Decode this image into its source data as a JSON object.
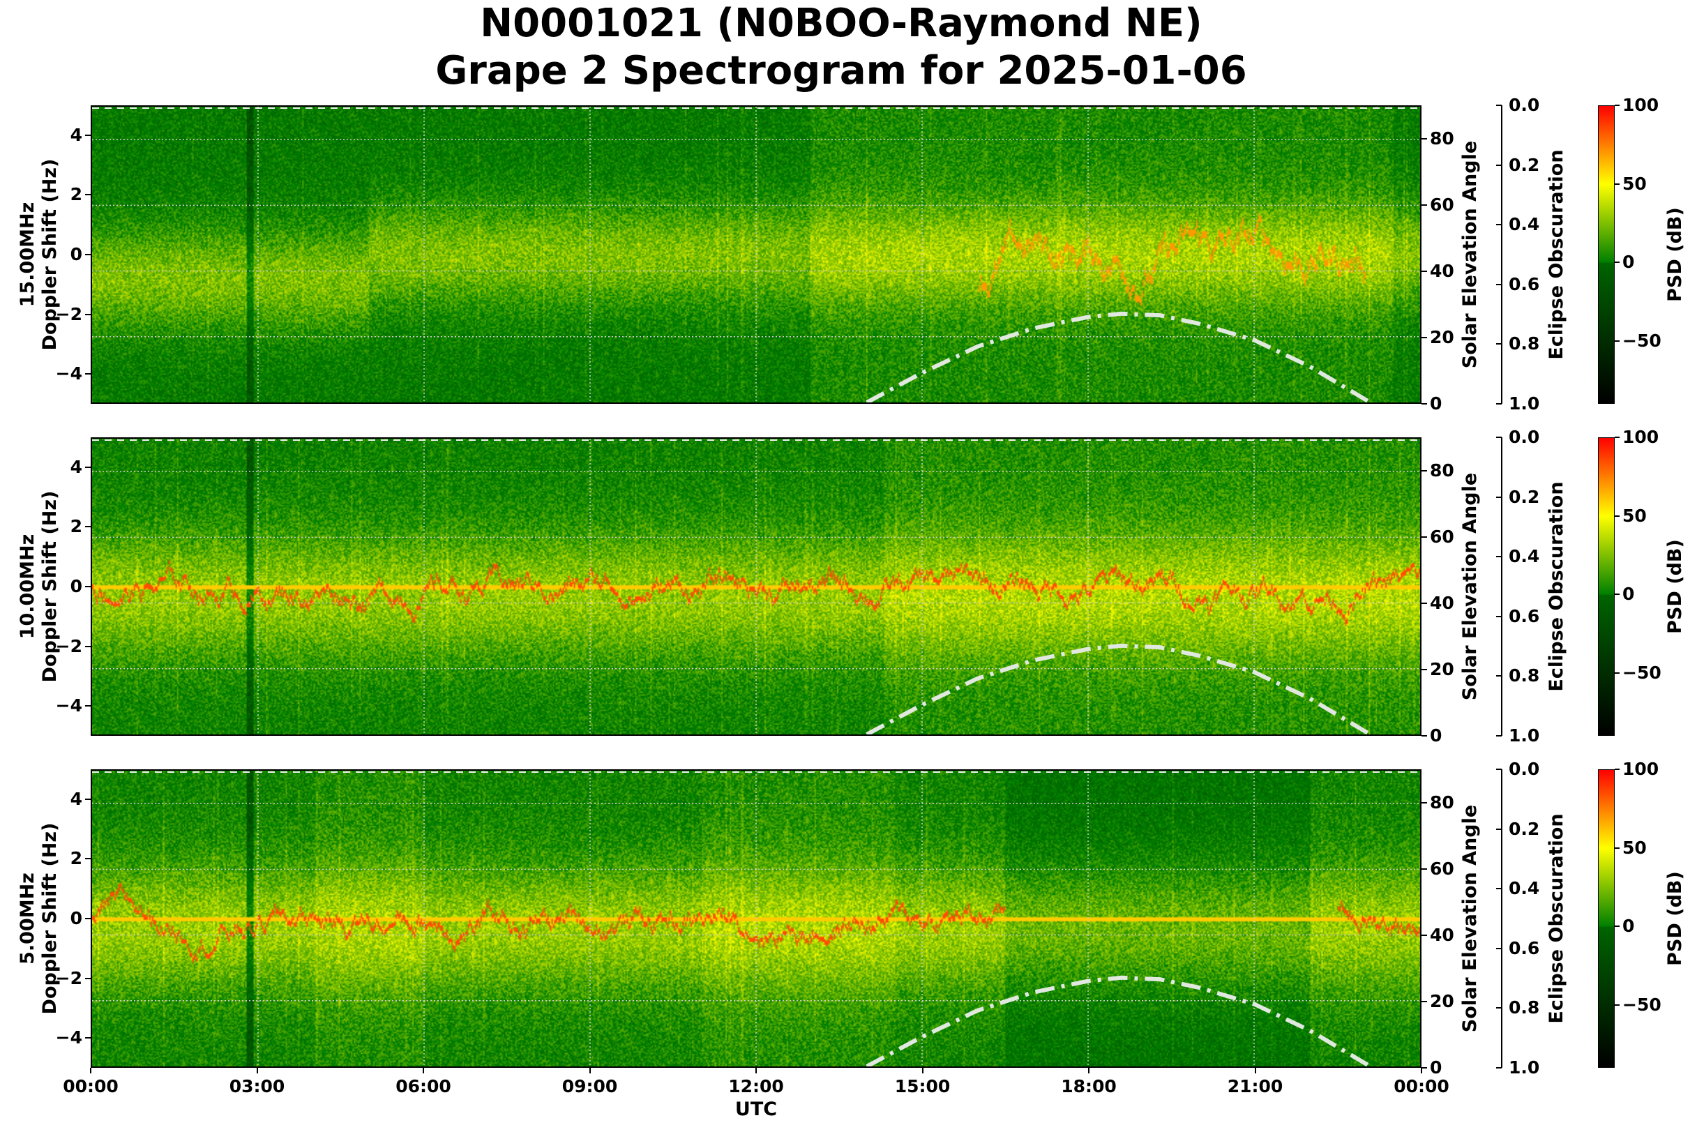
{
  "title_line1": "N0001021 (N0BOO-Raymond NE)",
  "title_line2": "Grape 2 Spectrogram for 2025-01-06",
  "chart_data": {
    "type": "heatmap",
    "xlabel": "UTC",
    "x_ticks": [
      "00:00",
      "03:00",
      "06:00",
      "09:00",
      "12:00",
      "15:00",
      "18:00",
      "21:00",
      "00:00"
    ],
    "xlim_hours": [
      0,
      24
    ],
    "ylabel": "Doppler Shift (Hz)",
    "ylim": [
      -5,
      5
    ],
    "y_ticks": [
      4,
      2,
      0,
      -2,
      -4
    ],
    "y_tick_labels": [
      "4",
      "2",
      "0",
      "−2",
      "−4"
    ],
    "right_axis": {
      "label": "Solar Elevation Angle",
      "ylim": [
        0,
        90
      ],
      "ticks": [
        "80",
        "60",
        "40",
        "20",
        "0"
      ],
      "tick_values": [
        80,
        60,
        40,
        20,
        0
      ]
    },
    "eclipse_axis": {
      "label": "Eclipse Obscuration",
      "ylim": [
        1.0,
        0.0
      ],
      "ticks": [
        "0.0",
        "0.2",
        "0.4",
        "0.6",
        "0.8",
        "1.0"
      ]
    },
    "colorbar": {
      "label": "PSD (dB)",
      "range": [
        -90,
        100
      ],
      "ticks": [
        "100",
        "50",
        "0",
        "−50"
      ],
      "tick_values": [
        100,
        50,
        0,
        -50
      ],
      "colors": [
        "#000000",
        "#008000",
        "#ffff00",
        "#ff0000"
      ]
    },
    "grid": true,
    "solar_elevation_curve": {
      "style": "dash-dot",
      "color": "#e0e8e0",
      "points": [
        [
          14.0,
          0
        ],
        [
          15,
          9
        ],
        [
          16,
          17
        ],
        [
          17,
          22.5
        ],
        [
          18,
          26
        ],
        [
          18.6,
          27
        ],
        [
          19.3,
          26.5
        ],
        [
          20,
          24
        ],
        [
          21,
          19
        ],
        [
          22,
          11
        ],
        [
          23,
          1
        ],
        [
          23.1,
          0
        ]
      ]
    },
    "panels": [
      {
        "frequency": "15.00MHz",
        "carrier_trace": false
      },
      {
        "frequency": "10.00MHz",
        "carrier_trace": true
      },
      {
        "frequency": "5.00MHz",
        "carrier_trace": true
      }
    ]
  }
}
